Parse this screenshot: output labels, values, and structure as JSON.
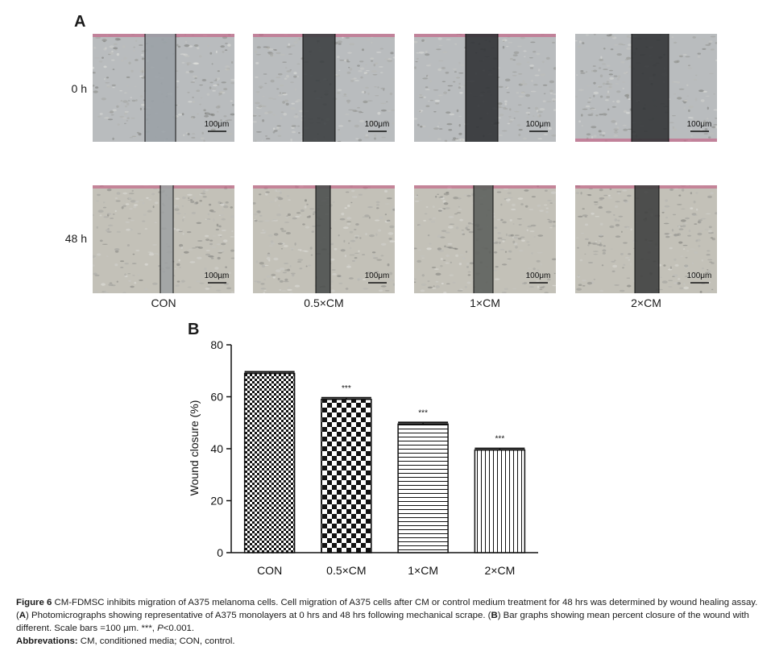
{
  "panel_a": {
    "letter": "A",
    "rows": [
      {
        "label": "0 h",
        "key": "0h"
      },
      {
        "label": "48 h",
        "key": "48h"
      }
    ],
    "conditions": [
      "CON",
      "0.5×CM",
      "1×CM",
      "2×CM"
    ],
    "scale_bar_label": "100μm"
  },
  "panel_b": {
    "letter": "B"
  },
  "chart_data": {
    "type": "bar",
    "categories": [
      "CON",
      "0.5×CM",
      "1×CM",
      "2×CM"
    ],
    "values": [
      69,
      59,
      49.5,
      39.5
    ],
    "errors": [
      0.6,
      0.6,
      0.6,
      0.6
    ],
    "significance": [
      "",
      "***",
      "***",
      "***"
    ],
    "ylabel": "Wound closure (%)",
    "xlabel": "",
    "title": "",
    "ylim": [
      0,
      80
    ],
    "yticks": [
      0,
      20,
      40,
      60,
      80
    ],
    "grid": false,
    "fill_patterns": [
      "dense-checker",
      "checkerboard",
      "horizontal-lines",
      "vertical-lines"
    ]
  },
  "caption": {
    "fig_label": "Figure 6",
    "text1": " CM-FDMSC inhibits migration of A375 melanoma cells. Cell migration of A375 cells after CM or control medium treatment for 48 hrs was determined by wound healing assay. (",
    "a_ref": "A",
    "text2": ") Photomicrographs showing representative of A375 monolayers at 0 hrs and 48 hrs following mechanical scrape. (",
    "b_ref": "B",
    "text3": ") Bar graphs showing mean percent closure of the wound with different. Scale bars =100 μm. ***, ",
    "p_text": "P",
    "text4": "<0.001.",
    "abbr_label": "Abbrevations:",
    "abbr_text": " CM, conditioned media; CON, control."
  }
}
